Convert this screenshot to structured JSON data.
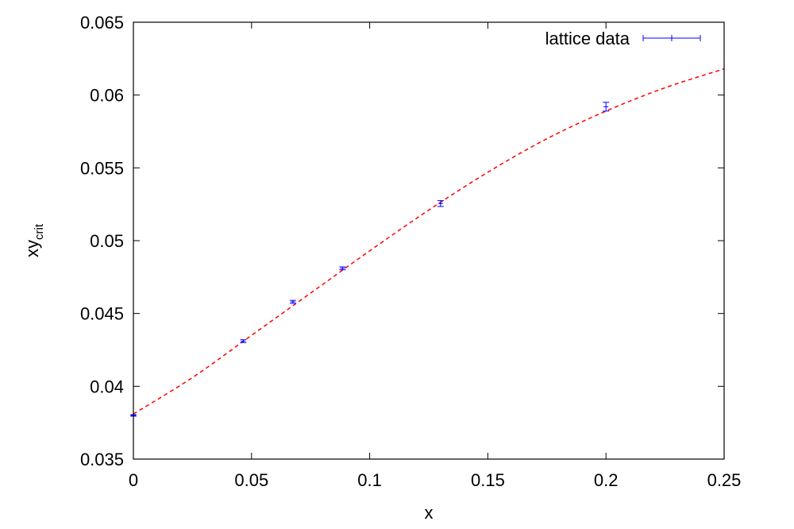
{
  "chart_data": {
    "type": "scatter",
    "title": "",
    "xlabel": "x",
    "ylabel": "xy",
    "ylabel_subscript": "crit",
    "xlim": [
      0,
      0.25
    ],
    "ylim": [
      0.035,
      0.065
    ],
    "xticks": [
      0,
      0.05,
      0.1,
      0.15,
      0.2,
      0.25
    ],
    "xtick_labels": [
      "0",
      "0.05",
      "0.1",
      "0.15",
      "0.2",
      "0.25"
    ],
    "yticks": [
      0.035,
      0.04,
      0.045,
      0.05,
      0.055,
      0.06,
      0.065
    ],
    "ytick_labels": [
      "0.035",
      "0.04",
      "0.045",
      "0.05",
      "0.055",
      "0.06",
      "0.065"
    ],
    "grid": false,
    "legend_position": "top-right",
    "series": [
      {
        "name": "lattice data",
        "color": "#0000ff",
        "style": "errorbars",
        "x": [
          0,
          0.0465,
          0.0675,
          0.0885,
          0.13,
          0.2
        ],
        "y": [
          0.038,
          0.0431,
          0.0458,
          0.0481,
          0.05255,
          0.0592
        ],
        "yerr": [
          5e-05,
          0.0001,
          0.0001,
          0.0001,
          0.0002,
          0.0003
        ]
      },
      {
        "name": "",
        "color": "#ff0000",
        "style": "dashed-line",
        "x": [
          0,
          0.025,
          0.05,
          0.075,
          0.1,
          0.125,
          0.15,
          0.175,
          0.2,
          0.225,
          0.25
        ],
        "y": [
          0.0381,
          0.0406,
          0.0435,
          0.0464,
          0.0493,
          0.0521,
          0.0547,
          0.057,
          0.0589,
          0.0605,
          0.0618
        ]
      }
    ]
  }
}
